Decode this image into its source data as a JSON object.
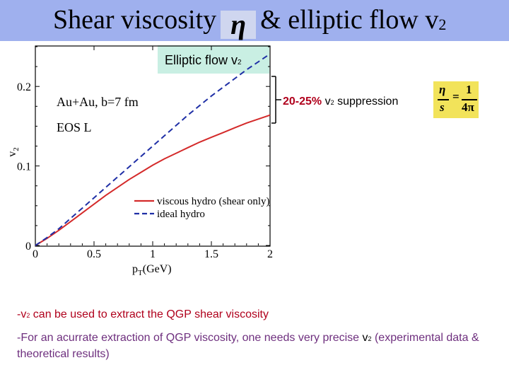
{
  "slide": {
    "title_prefix": "Shear viscosity",
    "title_eta": "η",
    "title_suffix": "& elliptic flow v",
    "title_sub": "2",
    "subtitle_main": "Elliptic flow v",
    "subtitle_sub": "2",
    "suppression_pct": "20-25%",
    "suppression_var": "v",
    "suppression_sub": "2",
    "suppression_label": "suppression",
    "formula": {
      "num_left": "η",
      "den_left": "s",
      "eq": "=",
      "num_right": "1",
      "den_right": "4π"
    },
    "bullet1_prefix": "-v",
    "bullet1_sub": "2",
    "bullet1_text": " can be used to extract the QGP shear viscosity",
    "bullet2_prefix": "-For an acurrate extraction of QGP viscosity, one needs very precise ",
    "bullet2_var": "v",
    "bullet2_sub": "2",
    "bullet2_text": " (experimental data & theoretical results)"
  },
  "chart_data": {
    "type": "line",
    "xlabel": "p",
    "xlabel_sub": "T",
    "xlabel_unit": "(GeV)",
    "ylabel": "v",
    "ylabel_sub": "2",
    "xlim": [
      0,
      2
    ],
    "ylim": [
      0,
      0.25
    ],
    "x_ticks": [
      "0",
      "0.5",
      "1",
      "1.5",
      "2"
    ],
    "y_ticks": [
      "0",
      "0.1",
      "0.2"
    ],
    "annotations": [
      "Au+Au, b=7 fm",
      "EOS L"
    ],
    "legend_position": "bottom-right",
    "series": [
      {
        "name": "viscous hydro (shear only)",
        "color": "#d42a2a",
        "dash": false,
        "x": [
          0,
          0.1,
          0.2,
          0.3,
          0.4,
          0.5,
          0.6,
          0.7,
          0.8,
          0.9,
          1.0,
          1.1,
          1.2,
          1.3,
          1.4,
          1.5,
          1.6,
          1.7,
          1.8,
          1.9,
          2.0
        ],
        "y": [
          0,
          0.009,
          0.019,
          0.03,
          0.041,
          0.052,
          0.063,
          0.073,
          0.083,
          0.092,
          0.101,
          0.109,
          0.116,
          0.123,
          0.13,
          0.136,
          0.142,
          0.148,
          0.154,
          0.159,
          0.164
        ]
      },
      {
        "name": "ideal hydro",
        "color": "#1f2fa6",
        "dash": true,
        "x": [
          0,
          0.1,
          0.2,
          0.3,
          0.4,
          0.5,
          0.6,
          0.7,
          0.8,
          0.9,
          1.0,
          1.1,
          1.2,
          1.3,
          1.4,
          1.5,
          1.6,
          1.7,
          1.8,
          1.9,
          2.0
        ],
        "y": [
          0,
          0.01,
          0.021,
          0.034,
          0.047,
          0.06,
          0.073,
          0.086,
          0.099,
          0.112,
          0.125,
          0.138,
          0.151,
          0.164,
          0.176,
          0.188,
          0.199,
          0.21,
          0.221,
          0.231,
          0.241
        ]
      }
    ]
  }
}
